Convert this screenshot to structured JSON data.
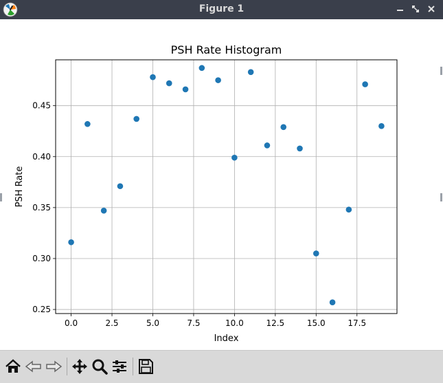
{
  "window": {
    "title": "Figure 1",
    "minimize_icon": "minimize-icon",
    "restore_icon": "restore-icon",
    "close_icon": "close-icon"
  },
  "toolbar": {
    "items": [
      {
        "name": "home",
        "icon": "home-icon"
      },
      {
        "name": "back",
        "icon": "back-arrow-icon"
      },
      {
        "name": "forward",
        "icon": "forward-arrow-icon"
      },
      {
        "name": "pan",
        "icon": "move-icon"
      },
      {
        "name": "zoom",
        "icon": "magnifier-icon"
      },
      {
        "name": "configure-subplots",
        "icon": "sliders-icon"
      },
      {
        "name": "save",
        "icon": "floppy-disk-icon"
      }
    ]
  },
  "chart_data": {
    "type": "scatter",
    "title": "PSH Rate Histogram",
    "xlabel": "Index",
    "ylabel": "PSH Rate",
    "x": [
      0,
      1,
      2,
      3,
      4,
      5,
      6,
      7,
      8,
      9,
      10,
      11,
      12,
      13,
      14,
      15,
      16,
      17,
      18,
      19
    ],
    "y": [
      0.316,
      0.432,
      0.347,
      0.371,
      0.437,
      0.478,
      0.472,
      0.466,
      0.487,
      0.475,
      0.399,
      0.483,
      0.411,
      0.429,
      0.408,
      0.305,
      0.257,
      0.348,
      0.471,
      0.43
    ],
    "xlim": [
      -0.95,
      19.95
    ],
    "ylim": [
      0.246,
      0.495
    ],
    "xticks": [
      0.0,
      2.5,
      5.0,
      7.5,
      10.0,
      12.5,
      15.0,
      17.5
    ],
    "xtick_labels": [
      "0.0",
      "2.5",
      "5.0",
      "7.5",
      "10.0",
      "12.5",
      "15.0",
      "17.5"
    ],
    "yticks": [
      0.25,
      0.3,
      0.35,
      0.4,
      0.45
    ],
    "ytick_labels": [
      "0.25",
      "0.30",
      "0.35",
      "0.40",
      "0.45"
    ],
    "grid": true,
    "marker_color": "#1f77b4"
  }
}
